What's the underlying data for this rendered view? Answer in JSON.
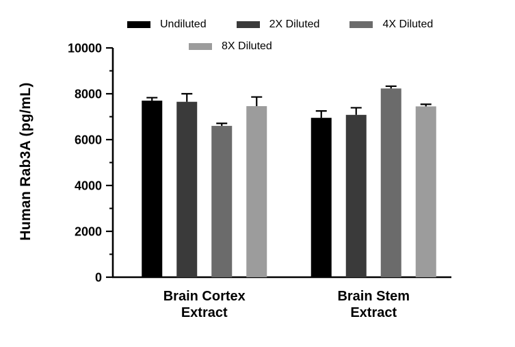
{
  "chart_data": {
    "type": "bar",
    "title": "",
    "ylabel": "Human Rab3A (pg/mL)",
    "xlabel": "",
    "ylim": [
      0,
      10000
    ],
    "yticks": [
      0,
      2000,
      4000,
      6000,
      8000,
      10000
    ],
    "minor_tick_step": 1000,
    "grid": false,
    "legend_position": "top",
    "categories": [
      "Brain Cortex\nExtract",
      "Brain Stem\nExtract"
    ],
    "series": [
      {
        "name": "Undiluted",
        "color": "#000000",
        "values": [
          7700,
          6950
        ],
        "errors": [
          130,
          300
        ]
      },
      {
        "name": "2X Diluted",
        "color": "#3a3a3a",
        "values": [
          7650,
          7080
        ],
        "errors": [
          350,
          310
        ]
      },
      {
        "name": "4X Diluted",
        "color": "#6b6b6b",
        "values": [
          6600,
          8230
        ],
        "errors": [
          110,
          100
        ]
      },
      {
        "name": "8X Diluted",
        "color": "#9c9c9c",
        "values": [
          7460,
          7450
        ],
        "errors": [
          400,
          90
        ]
      }
    ]
  }
}
